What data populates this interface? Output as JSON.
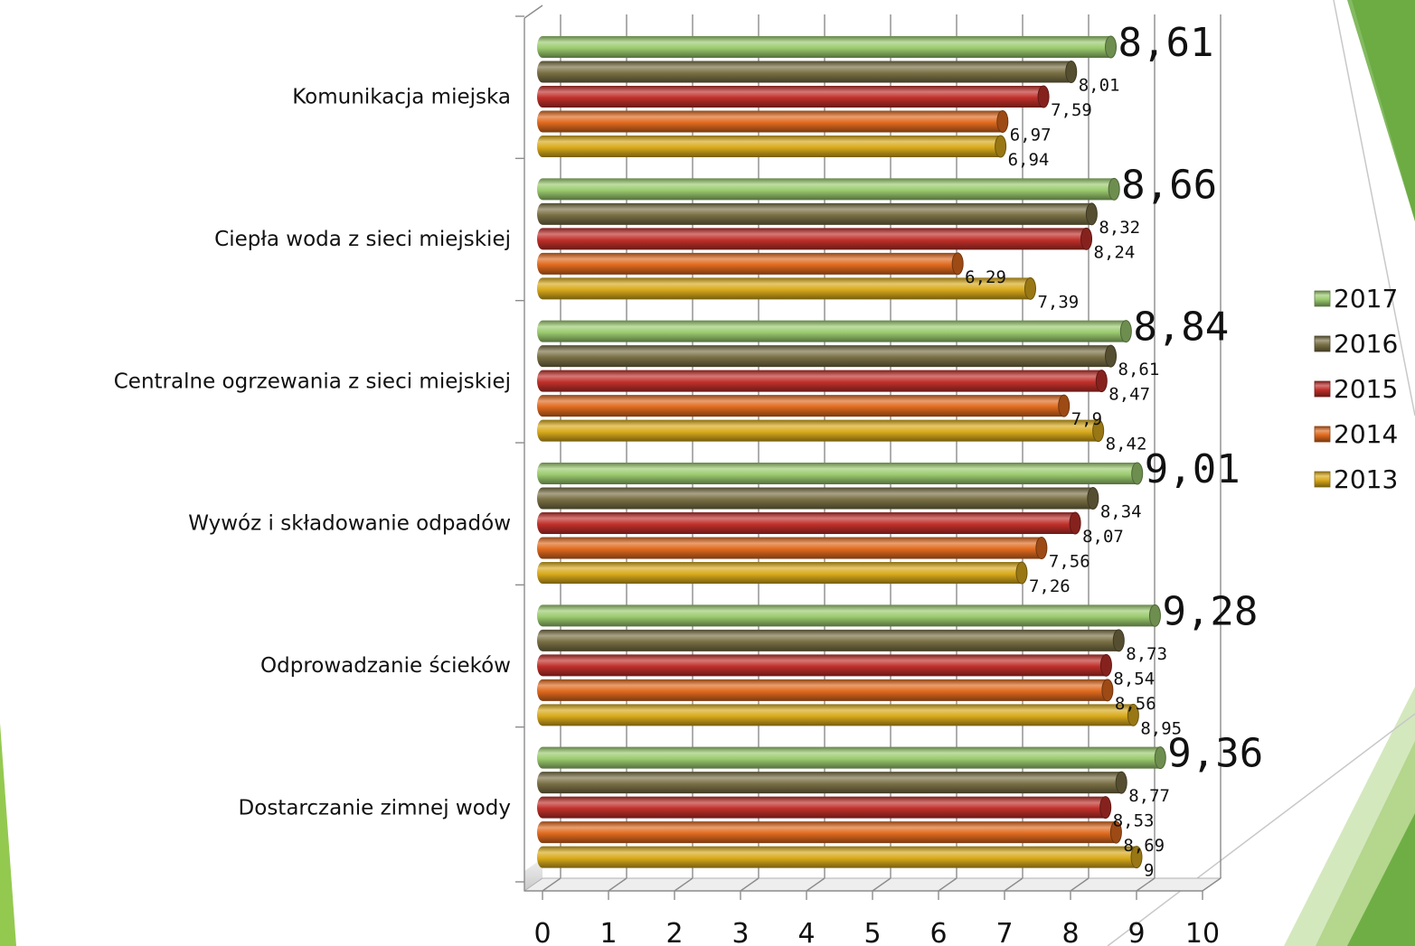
{
  "chart_data": {
    "type": "bar",
    "orientation": "horizontal",
    "style": "3d-cylinder",
    "categories": [
      "Komunikacja miejska",
      "Ciepła woda z sieci miejskiej",
      "Centralne ogrzewania z sieci miejskiej",
      "Wywóz i składowanie odpadów",
      "Odprowadzanie ścieków",
      "Dostarczanie zimnej wody"
    ],
    "series": [
      {
        "name": "2017",
        "color": "#9BCB6F",
        "values": [
          8.61,
          8.66,
          8.84,
          9.01,
          9.28,
          9.36
        ],
        "labels": [
          "8,61",
          "8,66",
          "8,84",
          "9,01",
          "9,28",
          "9,36"
        ]
      },
      {
        "name": "2016",
        "color": "#7A7045",
        "values": [
          8.01,
          8.32,
          8.61,
          8.34,
          8.73,
          8.77
        ],
        "labels": [
          "8,01",
          "8,32",
          "8,61",
          "8,34",
          "8,73",
          "8,77"
        ]
      },
      {
        "name": "2015",
        "color": "#C0302A",
        "values": [
          7.59,
          8.24,
          8.47,
          8.07,
          8.54,
          8.53
        ],
        "labels": [
          "7,59",
          "8,24",
          "8,47",
          "8,07",
          "8,54",
          "8,53"
        ]
      },
      {
        "name": "2014",
        "color": "#E06A1E",
        "values": [
          6.97,
          6.29,
          7.9,
          7.56,
          8.56,
          8.69
        ],
        "labels": [
          "6,97",
          "6,29",
          "7,9",
          "7,56",
          "8,56",
          "8,69"
        ]
      },
      {
        "name": "2013",
        "color": "#D9AA1C",
        "values": [
          6.94,
          7.39,
          8.42,
          7.26,
          8.95,
          9
        ],
        "labels": [
          "6,94",
          "7,39",
          "8,42",
          "7,26",
          "8,95",
          "9"
        ]
      }
    ],
    "xlim": [
      0,
      10
    ],
    "xticks": [
      "0",
      "1",
      "2",
      "3",
      "4",
      "5",
      "6",
      "7",
      "8",
      "9",
      "10"
    ],
    "grid": true,
    "legend_position": "right",
    "title": "",
    "xlabel": "",
    "ylabel": ""
  }
}
